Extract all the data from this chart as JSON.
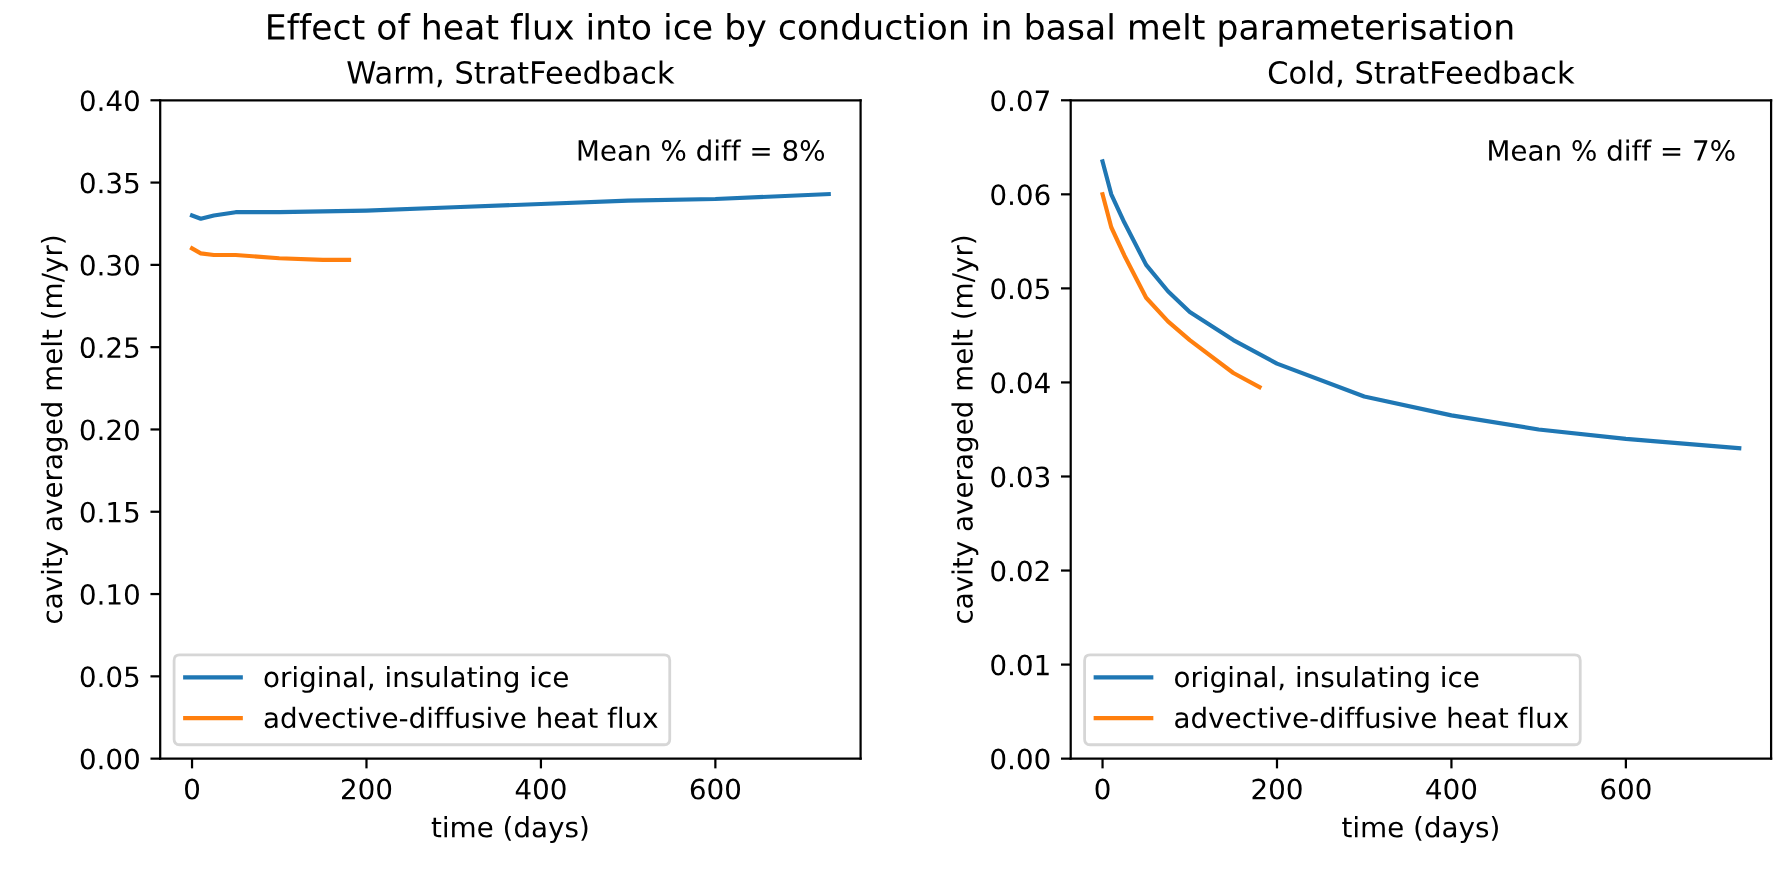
{
  "chart_data": [
    {
      "type": "line",
      "title": "Warm, StratFeedback",
      "xlabel": "time (days)",
      "ylabel": "cavity averaged melt (m/yr)",
      "annotations": [
        "Effect of heat flux into ice by conduction in basal melt parameterisation",
        "Mean % diff = 8%"
      ],
      "xlim": [
        -36.5,
        766.5
      ],
      "xticks": [
        0,
        200,
        400,
        600
      ],
      "ylim": [
        0,
        0.4
      ],
      "yticks": [
        {
          "value": 0,
          "label": "0.00"
        },
        {
          "value": 0.05,
          "label": "0.05"
        },
        {
          "value": 0.1,
          "label": "0.10"
        },
        {
          "value": 0.15,
          "label": "0.15"
        },
        {
          "value": 0.2,
          "label": "0.20"
        },
        {
          "value": 0.25,
          "label": "0.25"
        },
        {
          "value": 0.3,
          "label": "0.30"
        },
        {
          "value": 0.35,
          "label": "0.35"
        },
        {
          "value": 0.4,
          "label": "0.40"
        }
      ],
      "legend": "bottom left",
      "series": [
        {
          "name": "original, insulating ice",
          "color": "#1f77b4",
          "x": [
            0,
            10,
            25,
            50,
            100,
            200,
            300,
            400,
            500,
            600,
            730
          ],
          "values": [
            0.33,
            0.328,
            0.33,
            0.332,
            0.332,
            0.333,
            0.335,
            0.337,
            0.339,
            0.34,
            0.343
          ]
        },
        {
          "name": "advective-diffusive heat flux",
          "color": "#ff7f0e",
          "x": [
            0,
            10,
            25,
            50,
            100,
            150,
            180
          ],
          "values": [
            0.31,
            0.307,
            0.306,
            0.306,
            0.304,
            0.303,
            0.303
          ]
        }
      ]
    },
    {
      "type": "line",
      "title": "Cold, StratFeedback",
      "xlabel": "time (days)",
      "ylabel": "cavity averaged melt (m/yr)",
      "annotations": [
        "Mean % diff = 7%"
      ],
      "xlim": [
        -36.5,
        766.5
      ],
      "xticks": [
        0,
        200,
        400,
        600
      ],
      "ylim": [
        0,
        0.07
      ],
      "yticks": [
        {
          "value": 0,
          "label": "0.00"
        },
        {
          "value": 0.01,
          "label": "0.01"
        },
        {
          "value": 0.02,
          "label": "0.02"
        },
        {
          "value": 0.03,
          "label": "0.03"
        },
        {
          "value": 0.04,
          "label": "0.04"
        },
        {
          "value": 0.05,
          "label": "0.05"
        },
        {
          "value": 0.06,
          "label": "0.06"
        },
        {
          "value": 0.07,
          "label": "0.07"
        }
      ],
      "legend": "bottom left",
      "series": [
        {
          "name": "original, insulating ice",
          "color": "#1f77b4",
          "x": [
            0,
            10,
            25,
            50,
            75,
            100,
            150,
            200,
            300,
            400,
            500,
            600,
            730
          ],
          "values": [
            0.0635,
            0.06,
            0.057,
            0.0525,
            0.0497,
            0.0475,
            0.0445,
            0.042,
            0.0385,
            0.0365,
            0.035,
            0.034,
            0.033
          ]
        },
        {
          "name": "advective-diffusive heat flux",
          "color": "#ff7f0e",
          "x": [
            0,
            10,
            25,
            50,
            75,
            100,
            150,
            180
          ],
          "values": [
            0.06,
            0.0565,
            0.0535,
            0.049,
            0.0465,
            0.0445,
            0.041,
            0.0395
          ]
        }
      ]
    }
  ]
}
